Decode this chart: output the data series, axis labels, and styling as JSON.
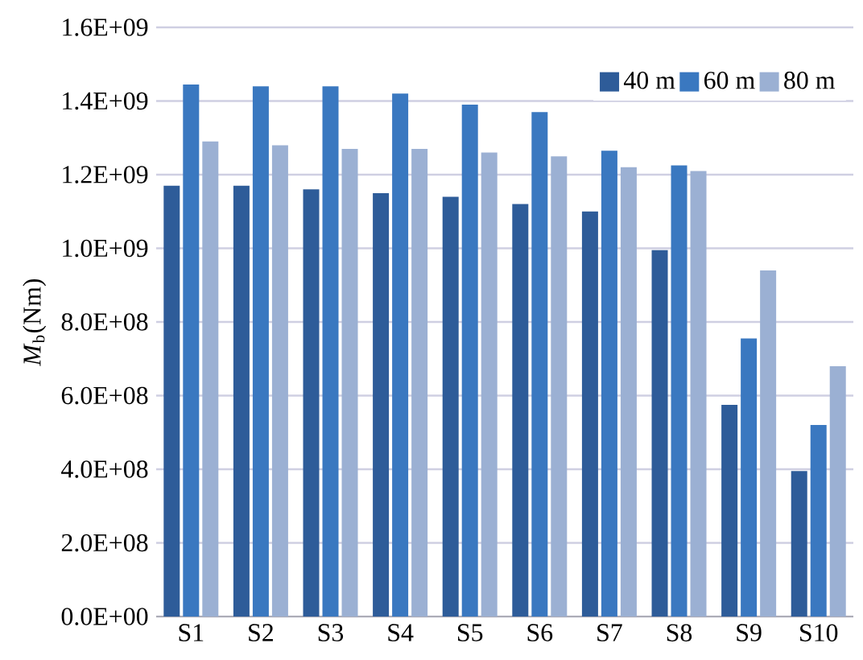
{
  "chart_data": {
    "type": "bar",
    "ylabel": "*M*$_{b}$(Nm)",
    "categories": [
      "S1",
      "S2",
      "S3",
      "S4",
      "S5",
      "S6",
      "S7",
      "S8",
      "S9",
      "S10"
    ],
    "series": [
      {
        "name": "40 m",
        "color": "#2e5c99",
        "values": [
          1170000000.0,
          1170000000.0,
          1160000000.0,
          1150000000.0,
          1140000000.0,
          1120000000.0,
          1100000000.0,
          995000000.0,
          575000000.0,
          395000000.0
        ]
      },
      {
        "name": "60 m",
        "color": "#3a78c0",
        "values": [
          1445000000.0,
          1440000000.0,
          1440000000.0,
          1420000000.0,
          1390000000.0,
          1370000000.0,
          1265000000.0,
          1225000000.0,
          755000000.0,
          520000000.0
        ]
      },
      {
        "name": "80 m",
        "color": "#9bb0d3",
        "values": [
          1290000000.0,
          1280000000.0,
          1270000000.0,
          1270000000.0,
          1260000000.0,
          1250000000.0,
          1220000000.0,
          1210000000.0,
          940000000.0,
          680000000.0
        ]
      }
    ],
    "ylim": [
      0,
      1600000000.0
    ],
    "yticks": [
      {
        "value": 0,
        "label": "0.0E+00"
      },
      {
        "value": 200000000.0,
        "label": "2.0E+08"
      },
      {
        "value": 400000000.0,
        "label": "4.0E+08"
      },
      {
        "value": 600000000.0,
        "label": "6.0E+08"
      },
      {
        "value": 800000000.0,
        "label": "8.0E+08"
      },
      {
        "value": 1000000000.0,
        "label": "1.0E+09"
      },
      {
        "value": 1200000000.0,
        "label": "1.2E+09"
      },
      {
        "value": 1400000000.0,
        "label": "1.4E+09"
      },
      {
        "value": 1600000000.0,
        "label": "1.6E+09"
      }
    ],
    "grid": "y",
    "legend": "top right"
  }
}
